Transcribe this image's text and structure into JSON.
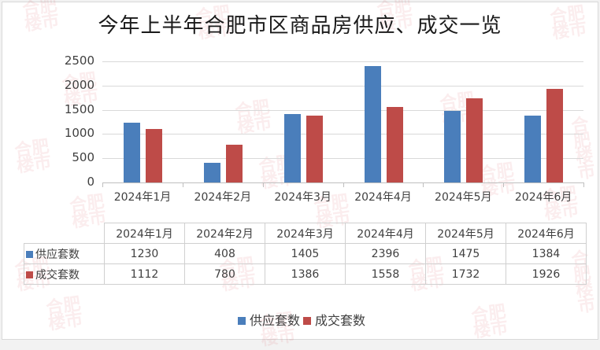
{
  "title": "今年上半年合肥市区商品房供应、成交一览",
  "watermark": "合肥楼市",
  "colors": {
    "supply": "#4a7ebb",
    "deal": "#be4b48",
    "grid": "#d9d9d9",
    "text": "#404040"
  },
  "legend": [
    {
      "label": "供应套数",
      "color": "#4a7ebb"
    },
    {
      "label": "成交套数",
      "color": "#be4b48"
    }
  ],
  "y_ticks": [
    "2500",
    "2000",
    "1500",
    "1000",
    "500",
    "0"
  ],
  "categories": [
    "2024年1月",
    "2024年2月",
    "2024年3月",
    "2024年4月",
    "2024年5月",
    "2024年6月"
  ],
  "table": {
    "header": [
      "2024年1月",
      "2024年2月",
      "2024年3月",
      "2024年4月",
      "2024年5月",
      "2024年6月"
    ],
    "rows": [
      {
        "label": "供应套数",
        "values": [
          "1230",
          "408",
          "1405",
          "2396",
          "1475",
          "1384"
        ]
      },
      {
        "label": "成交套数",
        "values": [
          "1112",
          "780",
          "1386",
          "1558",
          "1732",
          "1926"
        ]
      }
    ]
  },
  "chart_data": {
    "type": "bar",
    "title": "今年上半年合肥市区商品房供应、成交一览",
    "categories": [
      "2024年1月",
      "2024年2月",
      "2024年3月",
      "2024年4月",
      "2024年5月",
      "2024年6月"
    ],
    "series": [
      {
        "name": "供应套数",
        "color": "#4a7ebb",
        "values": [
          1230,
          408,
          1405,
          2396,
          1475,
          1384
        ]
      },
      {
        "name": "成交套数",
        "color": "#be4b48",
        "values": [
          1112,
          780,
          1386,
          1558,
          1732,
          1926
        ]
      }
    ],
    "xlabel": "",
    "ylabel": "",
    "ylim": [
      0,
      2500
    ],
    "yticks": [
      0,
      500,
      1000,
      1500,
      2000,
      2500
    ],
    "grid": true,
    "legend_position": "bottom",
    "data_table": true
  }
}
